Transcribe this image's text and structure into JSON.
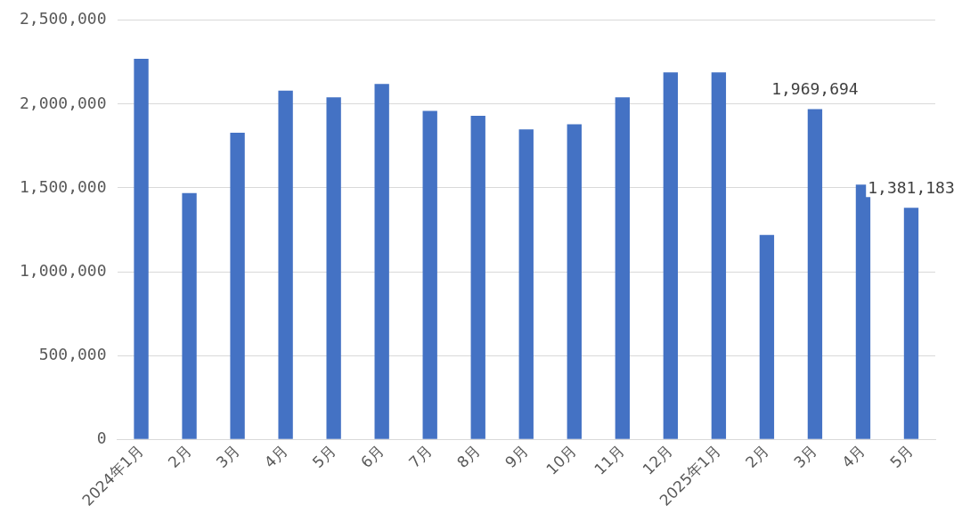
{
  "chart_data": {
    "type": "bar",
    "categories": [
      "2024年1月",
      "2月",
      "3月",
      "4月",
      "5月",
      "6月",
      "7月",
      "8月",
      "9月",
      "10月",
      "11月",
      "12月",
      "2025年1月",
      "2月",
      "3月",
      "4月",
      "5月"
    ],
    "values": [
      2270000,
      1470000,
      1830000,
      2080000,
      2040000,
      2120000,
      1960000,
      1930000,
      1850000,
      1880000,
      2040000,
      2190000,
      2190000,
      1220000,
      1969694,
      1520000,
      1381183
    ],
    "value_labels": [
      null,
      null,
      null,
      null,
      null,
      null,
      null,
      null,
      null,
      null,
      null,
      null,
      null,
      null,
      "1,969,694",
      null,
      "1,381,183"
    ],
    "color": "#4472c4",
    "ylim": [
      0,
      2500000
    ],
    "yticks": [
      {
        "value": 0,
        "label": "0"
      },
      {
        "value": 500000,
        "label": "500,000"
      },
      {
        "value": 1000000,
        "label": "1,000,000"
      },
      {
        "value": 1500000,
        "label": "1,500,000"
      },
      {
        "value": 2000000,
        "label": "2,000,000"
      },
      {
        "value": 2500000,
        "label": "2,500,000"
      }
    ],
    "grid": "y",
    "legend": false
  }
}
